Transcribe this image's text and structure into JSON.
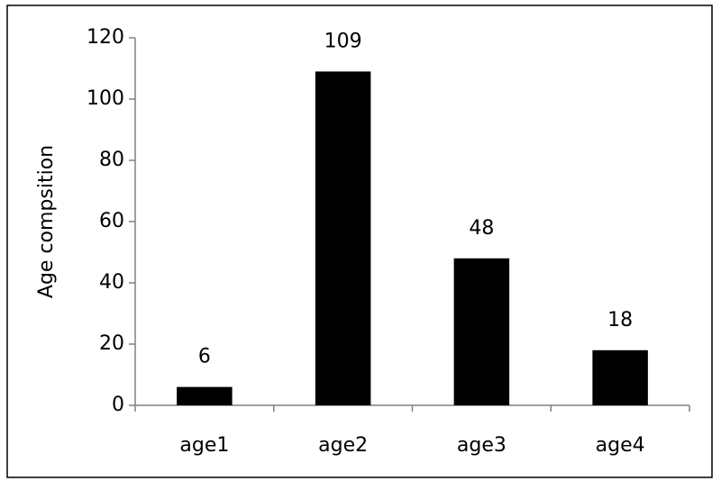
{
  "chart_data": {
    "type": "bar",
    "y_label": "Age compsition",
    "categories": [
      "age1",
      "age2",
      "age3",
      "age4"
    ],
    "values": [
      6,
      109,
      48,
      18
    ],
    "color": "#000000",
    "ylim": [
      0,
      120
    ],
    "yticks": [
      0,
      20,
      40,
      60,
      80,
      100,
      120
    ],
    "grid": false,
    "data_labels": true
  }
}
